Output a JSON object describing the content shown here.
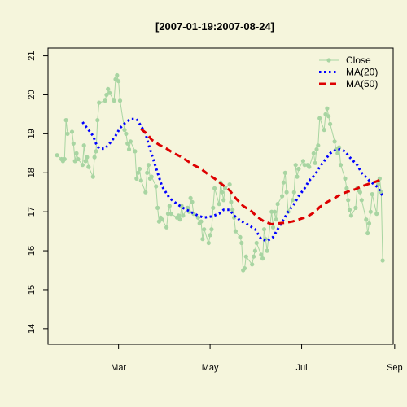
{
  "chart_data": {
    "type": "line",
    "title": "[2007-01-19:2007-08-24]",
    "xlabel": "",
    "ylabel": "",
    "ylim": [
      13.6,
      21.2
    ],
    "xlim": [
      "2007-01-13",
      "2007-08-31"
    ],
    "y_ticks": [
      14,
      15,
      16,
      17,
      18,
      19,
      20,
      21
    ],
    "x_ticks": [
      {
        "date": "2007-03-01",
        "label": "Mar"
      },
      {
        "date": "2007-05-01",
        "label": "May"
      },
      {
        "date": "2007-07-01",
        "label": "Jul"
      },
      {
        "date": "2007-09-01",
        "label": "Sep"
      }
    ],
    "legend_position": "top-right",
    "grid": false,
    "colors": {
      "background": "#F5F5DC",
      "close": "#A8D5A2",
      "ma20": "#0000FF",
      "ma50": "#DD0000"
    },
    "series": [
      {
        "name": "Close",
        "style": "line-points",
        "points": [
          [
            "2007-01-19",
            18.45
          ],
          [
            "2007-01-22",
            18.35
          ],
          [
            "2007-01-23",
            18.3
          ],
          [
            "2007-01-24",
            18.35
          ],
          [
            "2007-01-25",
            19.35
          ],
          [
            "2007-01-26",
            19.0
          ],
          [
            "2007-01-29",
            19.05
          ],
          [
            "2007-01-30",
            18.75
          ],
          [
            "2007-01-31",
            18.3
          ],
          [
            "2007-02-01",
            18.5
          ],
          [
            "2007-02-02",
            18.35
          ],
          [
            "2007-02-05",
            18.2
          ],
          [
            "2007-02-06",
            18.7
          ],
          [
            "2007-02-07",
            18.3
          ],
          [
            "2007-02-08",
            18.4
          ],
          [
            "2007-02-09",
            18.15
          ],
          [
            "2007-02-12",
            17.9
          ],
          [
            "2007-02-13",
            18.4
          ],
          [
            "2007-02-14",
            18.55
          ],
          [
            "2007-02-15",
            19.35
          ],
          [
            "2007-02-16",
            19.8
          ],
          [
            "2007-02-20",
            19.85
          ],
          [
            "2007-02-21",
            20.0
          ],
          [
            "2007-02-22",
            20.15
          ],
          [
            "2007-02-23",
            20.05
          ],
          [
            "2007-02-26",
            19.85
          ],
          [
            "2007-02-27",
            20.4
          ],
          [
            "2007-02-28",
            20.5
          ],
          [
            "2007-03-01",
            20.35
          ],
          [
            "2007-03-02",
            19.85
          ],
          [
            "2007-03-05",
            19.1
          ],
          [
            "2007-03-06",
            19.0
          ],
          [
            "2007-03-07",
            18.75
          ],
          [
            "2007-03-08",
            18.6
          ],
          [
            "2007-03-09",
            18.8
          ],
          [
            "2007-03-12",
            18.55
          ],
          [
            "2007-03-13",
            17.85
          ],
          [
            "2007-03-14",
            18.0
          ],
          [
            "2007-03-15",
            18.1
          ],
          [
            "2007-03-16",
            17.8
          ],
          [
            "2007-03-19",
            17.5
          ],
          [
            "2007-03-20",
            18.0
          ],
          [
            "2007-03-21",
            18.2
          ],
          [
            "2007-03-22",
            17.85
          ],
          [
            "2007-03-23",
            17.9
          ],
          [
            "2007-03-26",
            17.65
          ],
          [
            "2007-03-27",
            17.1
          ],
          [
            "2007-03-28",
            16.75
          ],
          [
            "2007-03-29",
            16.85
          ],
          [
            "2007-03-30",
            16.8
          ],
          [
            "2007-04-02",
            16.6
          ],
          [
            "2007-04-03",
            16.95
          ],
          [
            "2007-04-04",
            17.15
          ],
          [
            "2007-04-05",
            16.95
          ],
          [
            "2007-04-09",
            16.85
          ],
          [
            "2007-04-10",
            16.9
          ],
          [
            "2007-04-11",
            16.8
          ],
          [
            "2007-04-12",
            17.15
          ],
          [
            "2007-04-13",
            16.9
          ],
          [
            "2007-04-16",
            17.1
          ],
          [
            "2007-04-17",
            17.0
          ],
          [
            "2007-04-18",
            17.35
          ],
          [
            "2007-04-19",
            17.25
          ],
          [
            "2007-04-20",
            16.95
          ],
          [
            "2007-04-23",
            16.85
          ],
          [
            "2007-04-24",
            16.7
          ],
          [
            "2007-04-25",
            16.75
          ],
          [
            "2007-04-26",
            16.3
          ],
          [
            "2007-04-27",
            16.55
          ],
          [
            "2007-04-30",
            16.2
          ],
          [
            "2007-05-01",
            16.4
          ],
          [
            "2007-05-02",
            16.55
          ],
          [
            "2007-05-03",
            17.1
          ],
          [
            "2007-05-04",
            17.6
          ],
          [
            "2007-05-07",
            17.2
          ],
          [
            "2007-05-08",
            17.75
          ],
          [
            "2007-05-09",
            17.5
          ],
          [
            "2007-05-10",
            17.3
          ],
          [
            "2007-05-11",
            17.6
          ],
          [
            "2007-05-14",
            17.7
          ],
          [
            "2007-05-15",
            17.25
          ],
          [
            "2007-05-16",
            17.05
          ],
          [
            "2007-05-17",
            16.85
          ],
          [
            "2007-05-18",
            16.5
          ],
          [
            "2007-05-21",
            16.35
          ],
          [
            "2007-05-22",
            16.2
          ],
          [
            "2007-05-23",
            15.5
          ],
          [
            "2007-05-24",
            15.55
          ],
          [
            "2007-05-25",
            15.85
          ],
          [
            "2007-05-29",
            15.65
          ],
          [
            "2007-05-30",
            15.85
          ],
          [
            "2007-05-31",
            16.0
          ],
          [
            "2007-06-01",
            16.2
          ],
          [
            "2007-06-04",
            15.9
          ],
          [
            "2007-06-05",
            15.8
          ],
          [
            "2007-06-06",
            16.55
          ],
          [
            "2007-06-07",
            16.3
          ],
          [
            "2007-06-08",
            16.0
          ],
          [
            "2007-06-11",
            17.0
          ],
          [
            "2007-06-12",
            16.6
          ],
          [
            "2007-06-13",
            17.0
          ],
          [
            "2007-06-14",
            16.8
          ],
          [
            "2007-06-15",
            17.2
          ],
          [
            "2007-06-18",
            17.4
          ],
          [
            "2007-06-19",
            17.75
          ],
          [
            "2007-06-20",
            18.0
          ],
          [
            "2007-06-21",
            17.5
          ],
          [
            "2007-06-22",
            17.0
          ],
          [
            "2007-06-25",
            17.3
          ],
          [
            "2007-06-26",
            17.5
          ],
          [
            "2007-06-27",
            18.2
          ],
          [
            "2007-06-28",
            17.9
          ],
          [
            "2007-06-29",
            18.1
          ],
          [
            "2007-07-02",
            18.3
          ],
          [
            "2007-07-03",
            18.2
          ],
          [
            "2007-07-05",
            18.2
          ],
          [
            "2007-07-06",
            18.15
          ],
          [
            "2007-07-09",
            18.5
          ],
          [
            "2007-07-10",
            18.25
          ],
          [
            "2007-07-11",
            18.6
          ],
          [
            "2007-07-12",
            18.7
          ],
          [
            "2007-07-13",
            19.4
          ],
          [
            "2007-07-16",
            19.1
          ],
          [
            "2007-07-17",
            19.5
          ],
          [
            "2007-07-18",
            19.65
          ],
          [
            "2007-07-19",
            19.45
          ],
          [
            "2007-07-20",
            19.25
          ],
          [
            "2007-07-23",
            18.8
          ],
          [
            "2007-07-24",
            18.6
          ],
          [
            "2007-07-25",
            18.5
          ],
          [
            "2007-07-26",
            18.65
          ],
          [
            "2007-07-27",
            18.2
          ],
          [
            "2007-07-30",
            17.85
          ],
          [
            "2007-07-31",
            17.6
          ],
          [
            "2007-08-01",
            17.3
          ],
          [
            "2007-08-02",
            17.05
          ],
          [
            "2007-08-03",
            16.9
          ],
          [
            "2007-08-06",
            17.1
          ],
          [
            "2007-08-07",
            17.6
          ],
          [
            "2007-08-08",
            17.55
          ],
          [
            "2007-08-09",
            17.5
          ],
          [
            "2007-08-10",
            17.3
          ],
          [
            "2007-08-13",
            16.8
          ],
          [
            "2007-08-14",
            16.45
          ],
          [
            "2007-08-15",
            16.7
          ],
          [
            "2007-08-16",
            17.0
          ],
          [
            "2007-08-17",
            17.45
          ],
          [
            "2007-08-20",
            16.95
          ],
          [
            "2007-08-21",
            17.7
          ],
          [
            "2007-08-22",
            17.85
          ],
          [
            "2007-08-23",
            17.5
          ],
          [
            "2007-08-24",
            15.75
          ]
        ]
      },
      {
        "name": "MA(20)",
        "style": "dotted",
        "points": [
          [
            "2007-02-05",
            19.3
          ],
          [
            "2007-02-08",
            19.15
          ],
          [
            "2007-02-12",
            18.95
          ],
          [
            "2007-02-14",
            18.75
          ],
          [
            "2007-02-16",
            18.62
          ],
          [
            "2007-02-20",
            18.62
          ],
          [
            "2007-02-23",
            18.75
          ],
          [
            "2007-02-27",
            18.95
          ],
          [
            "2007-03-02",
            19.15
          ],
          [
            "2007-03-06",
            19.3
          ],
          [
            "2007-03-09",
            19.38
          ],
          [
            "2007-03-13",
            19.38
          ],
          [
            "2007-03-16",
            19.2
          ],
          [
            "2007-03-19",
            19.0
          ],
          [
            "2007-03-22",
            18.6
          ],
          [
            "2007-03-27",
            18.0
          ],
          [
            "2007-03-30",
            17.65
          ],
          [
            "2007-04-04",
            17.35
          ],
          [
            "2007-04-09",
            17.2
          ],
          [
            "2007-04-13",
            17.1
          ],
          [
            "2007-04-18",
            17.0
          ],
          [
            "2007-04-23",
            16.9
          ],
          [
            "2007-04-27",
            16.85
          ],
          [
            "2007-05-02",
            16.88
          ],
          [
            "2007-05-07",
            16.95
          ],
          [
            "2007-05-10",
            17.05
          ],
          [
            "2007-05-14",
            17.05
          ],
          [
            "2007-05-17",
            16.9
          ],
          [
            "2007-05-22",
            16.75
          ],
          [
            "2007-05-25",
            16.7
          ],
          [
            "2007-05-31",
            16.55
          ],
          [
            "2007-06-04",
            16.3
          ],
          [
            "2007-06-08",
            16.25
          ],
          [
            "2007-06-12",
            16.35
          ],
          [
            "2007-06-15",
            16.55
          ],
          [
            "2007-06-19",
            16.8
          ],
          [
            "2007-06-22",
            17.0
          ],
          [
            "2007-06-26",
            17.2
          ],
          [
            "2007-06-29",
            17.4
          ],
          [
            "2007-07-03",
            17.6
          ],
          [
            "2007-07-06",
            17.8
          ],
          [
            "2007-07-10",
            17.95
          ],
          [
            "2007-07-13",
            18.15
          ],
          [
            "2007-07-17",
            18.35
          ],
          [
            "2007-07-20",
            18.5
          ],
          [
            "2007-07-25",
            18.62
          ],
          [
            "2007-07-30",
            18.55
          ],
          [
            "2007-08-02",
            18.4
          ],
          [
            "2007-08-07",
            18.2
          ],
          [
            "2007-08-10",
            18.0
          ],
          [
            "2007-08-15",
            17.8
          ],
          [
            "2007-08-20",
            17.65
          ],
          [
            "2007-08-22",
            17.55
          ],
          [
            "2007-08-24",
            17.4
          ]
        ]
      },
      {
        "name": "MA(50)",
        "style": "dashed",
        "points": [
          [
            "2007-03-16",
            19.12
          ],
          [
            "2007-03-20",
            19.0
          ],
          [
            "2007-03-23",
            18.85
          ],
          [
            "2007-03-28",
            18.72
          ],
          [
            "2007-04-02",
            18.62
          ],
          [
            "2007-04-06",
            18.52
          ],
          [
            "2007-04-11",
            18.42
          ],
          [
            "2007-04-16",
            18.3
          ],
          [
            "2007-04-20",
            18.2
          ],
          [
            "2007-04-25",
            18.1
          ],
          [
            "2007-04-30",
            17.95
          ],
          [
            "2007-05-04",
            17.85
          ],
          [
            "2007-05-09",
            17.7
          ],
          [
            "2007-05-14",
            17.55
          ],
          [
            "2007-05-18",
            17.35
          ],
          [
            "2007-05-23",
            17.15
          ],
          [
            "2007-05-29",
            17.0
          ],
          [
            "2007-06-01",
            16.88
          ],
          [
            "2007-06-06",
            16.75
          ],
          [
            "2007-06-11",
            16.68
          ],
          [
            "2007-06-15",
            16.7
          ],
          [
            "2007-06-20",
            16.72
          ],
          [
            "2007-06-25",
            16.75
          ],
          [
            "2007-06-29",
            16.8
          ],
          [
            "2007-07-05",
            16.88
          ],
          [
            "2007-07-10",
            17.0
          ],
          [
            "2007-07-13",
            17.12
          ],
          [
            "2007-07-18",
            17.25
          ],
          [
            "2007-07-23",
            17.35
          ],
          [
            "2007-07-27",
            17.45
          ],
          [
            "2007-08-01",
            17.52
          ],
          [
            "2007-08-06",
            17.58
          ],
          [
            "2007-08-10",
            17.65
          ],
          [
            "2007-08-15",
            17.72
          ],
          [
            "2007-08-20",
            17.78
          ],
          [
            "2007-08-24",
            17.85
          ]
        ]
      }
    ]
  }
}
